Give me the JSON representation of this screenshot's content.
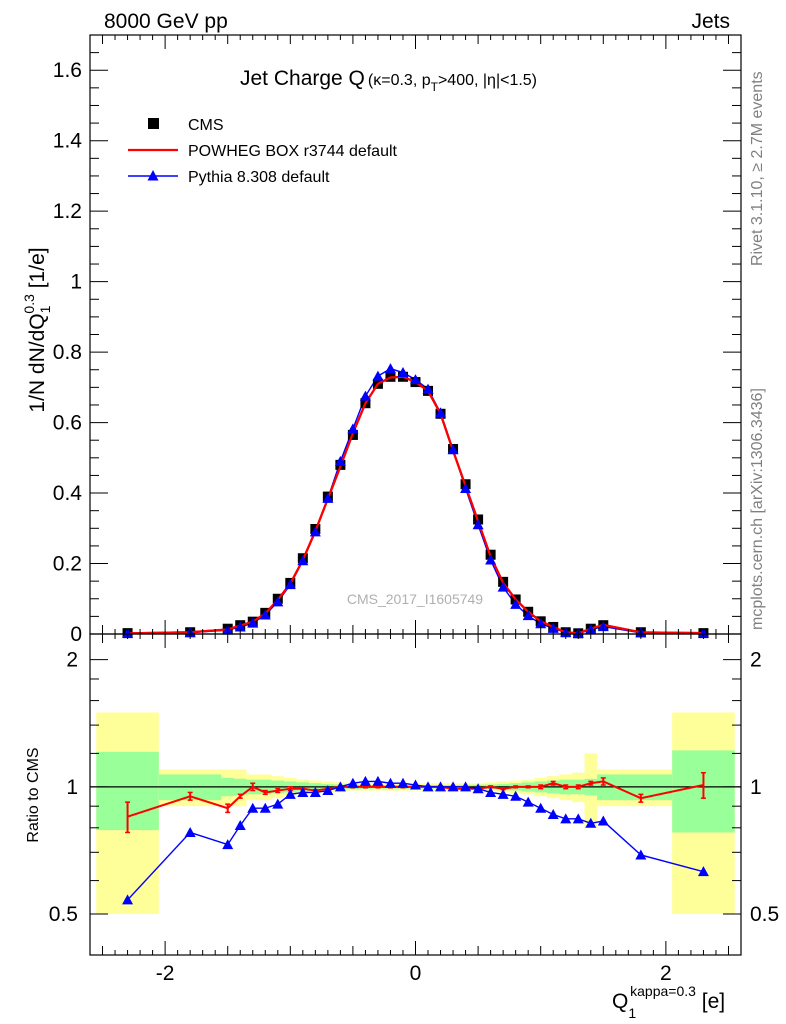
{
  "header": {
    "energy_label": "8000 GeV pp",
    "process_label": "Jets"
  },
  "side": {
    "rivet_label": "Rivet 3.1.10, ≥ 2.7M events",
    "mcplots_label": "mcplots.cern.ch [arXiv:1306.3436]"
  },
  "watermark": "CMS_2017_I1605749",
  "chart_data": {
    "type": "line",
    "title": {
      "main": "Jet Charge Q",
      "detail_a": "(κ=0.3, p",
      "detail_sub": "T",
      "detail_b": ">400, |η|<1.5)"
    },
    "ylabel": {
      "main": "1/N dN/dQ",
      "sub": "1",
      "sup": "0.3",
      "unit": " [1/e]"
    },
    "xlabel": {
      "main": "Q",
      "sub": "1",
      "sup": "kappa=0.3",
      "unit": " [e]"
    },
    "ratio_ylabel": "Ratio to CMS",
    "xlim": [
      -2.6,
      2.6
    ],
    "ylim": [
      0,
      1.7
    ],
    "ratio_ylim": [
      0.4,
      2.3
    ],
    "x_ticks": [
      "-2",
      "0",
      "2"
    ],
    "x_tick_values": [
      -2,
      0,
      2
    ],
    "y_ticks": [
      "0",
      "0.2",
      "0.4",
      "0.6",
      "0.8",
      "1",
      "1.2",
      "1.4",
      "1.6"
    ],
    "y_tick_values": [
      0,
      0.2,
      0.4,
      0.6,
      0.8,
      1,
      1.2,
      1.4,
      1.6
    ],
    "ratio_ticks": [
      "0.5",
      "1",
      "2"
    ],
    "ratio_tick_values": [
      0.5,
      1,
      2
    ],
    "legend_position": "top-left",
    "x": [
      -2.3,
      -1.8,
      -1.5,
      -1.4,
      -1.3,
      -1.2,
      -1.1,
      -1.0,
      -0.9,
      -0.8,
      -0.7,
      -0.6,
      -0.5,
      -0.4,
      -0.3,
      -0.2,
      -0.1,
      0.0,
      0.1,
      0.2,
      0.3,
      0.4,
      0.5,
      0.6,
      0.7,
      0.8,
      0.9,
      1.0,
      1.1,
      1.2,
      1.3,
      1.4,
      1.5,
      1.8,
      2.3
    ],
    "series": [
      {
        "name": "CMS",
        "color": "#000000",
        "marker": "square",
        "values": [
          0.0025,
          0.005,
          0.015,
          0.025,
          0.035,
          0.06,
          0.1,
          0.145,
          0.215,
          0.298,
          0.39,
          0.48,
          0.565,
          0.655,
          0.71,
          0.73,
          0.73,
          0.715,
          0.69,
          0.625,
          0.525,
          0.425,
          0.325,
          0.225,
          0.148,
          0.098,
          0.063,
          0.036,
          0.02,
          0.005,
          0.002,
          0.015,
          0.025,
          0.005,
          0.0025
        ]
      },
      {
        "name": "POWHEG BOX r3744 default",
        "color": "#ff0000",
        "marker": "line",
        "values": [
          0.002,
          0.005,
          0.013,
          0.024,
          0.035,
          0.058,
          0.097,
          0.143,
          0.21,
          0.292,
          0.384,
          0.475,
          0.57,
          0.655,
          0.71,
          0.728,
          0.73,
          0.715,
          0.69,
          0.625,
          0.52,
          0.42,
          0.32,
          0.22,
          0.145,
          0.098,
          0.063,
          0.036,
          0.02,
          0.005,
          0.002,
          0.015,
          0.026,
          0.0047,
          0.0025
        ]
      },
      {
        "name": "Pythia 8.308 default",
        "color": "#0000ff",
        "marker": "triangle",
        "values": [
          0.0014,
          0.004,
          0.011,
          0.02,
          0.031,
          0.054,
          0.091,
          0.14,
          0.208,
          0.29,
          0.385,
          0.49,
          0.582,
          0.675,
          0.732,
          0.753,
          0.742,
          0.722,
          0.695,
          0.628,
          0.523,
          0.413,
          0.31,
          0.21,
          0.133,
          0.084,
          0.052,
          0.029,
          0.016,
          0.0041,
          0.0015,
          0.012,
          0.021,
          0.0033,
          0.0016
        ]
      }
    ],
    "ratio": {
      "reference": "CMS",
      "bins": [
        -2.55,
        -2.05,
        -1.55,
        -1.45,
        -1.35,
        -1.25,
        -1.15,
        -1.05,
        -0.95,
        -0.85,
        -0.75,
        -0.65,
        -0.55,
        -0.45,
        -0.35,
        -0.25,
        -0.15,
        -0.05,
        0.05,
        0.15,
        0.25,
        0.35,
        0.45,
        0.55,
        0.65,
        0.75,
        0.85,
        0.95,
        1.05,
        1.15,
        1.25,
        1.35,
        1.45,
        1.55,
        2.05,
        2.55
      ],
      "band_inner": [
        0.21,
        0.07,
        0.05,
        0.045,
        0.04,
        0.04,
        0.035,
        0.03,
        0.025,
        0.02,
        0.015,
        0.013,
        0.012,
        0.011,
        0.01,
        0.01,
        0.01,
        0.01,
        0.01,
        0.01,
        0.01,
        0.011,
        0.012,
        0.013,
        0.015,
        0.02,
        0.025,
        0.03,
        0.035,
        0.04,
        0.04,
        0.045,
        0.07,
        0.07,
        0.22
      ],
      "band_outer": [
        0.5,
        0.1,
        0.1,
        0.1,
        0.07,
        0.07,
        0.06,
        0.05,
        0.04,
        0.035,
        0.03,
        0.025,
        0.02,
        0.02,
        0.02,
        0.02,
        0.02,
        0.02,
        0.02,
        0.02,
        0.02,
        0.02,
        0.02,
        0.025,
        0.03,
        0.035,
        0.04,
        0.05,
        0.06,
        0.07,
        0.08,
        0.2,
        0.1,
        0.1,
        0.5
      ],
      "series": [
        {
          "name": "POWHEG BOX r3744 default",
          "color": "#ff0000",
          "values": [
            0.85,
            0.95,
            0.89,
            0.95,
            1.0,
            0.97,
            0.98,
            0.99,
            0.99,
            0.98,
            0.99,
            1.0,
            1.0,
            1.0,
            1.0,
            1.0,
            1.0,
            1.0,
            1.0,
            1.0,
            0.99,
            0.99,
            0.99,
            1.0,
            0.99,
            1.0,
            1.0,
            1.0,
            1.02,
            1.0,
            1.0,
            1.02,
            1.03,
            0.94,
            1.01
          ],
          "errors": [
            0.07,
            0.02,
            0.02,
            0.01,
            0.02,
            0.01,
            0.01,
            0.01,
            0.005,
            0.005,
            0.005,
            0.005,
            0.005,
            0.005,
            0.005,
            0.005,
            0.005,
            0.005,
            0.005,
            0.005,
            0.005,
            0.005,
            0.005,
            0.005,
            0.005,
            0.005,
            0.005,
            0.01,
            0.01,
            0.01,
            0.01,
            0.01,
            0.02,
            0.02,
            0.07
          ]
        },
        {
          "name": "Pythia 8.308 default",
          "color": "#0000ff",
          "values": [
            0.54,
            0.78,
            0.73,
            0.81,
            0.89,
            0.89,
            0.91,
            0.96,
            0.97,
            0.97,
            0.98,
            1.0,
            1.02,
            1.03,
            1.03,
            1.02,
            1.02,
            1.01,
            1.0,
            1.0,
            1.0,
            1.0,
            0.99,
            0.97,
            0.96,
            0.95,
            0.92,
            0.89,
            0.86,
            0.84,
            0.84,
            0.82,
            0.83,
            0.69,
            0.63
          ]
        }
      ]
    }
  }
}
